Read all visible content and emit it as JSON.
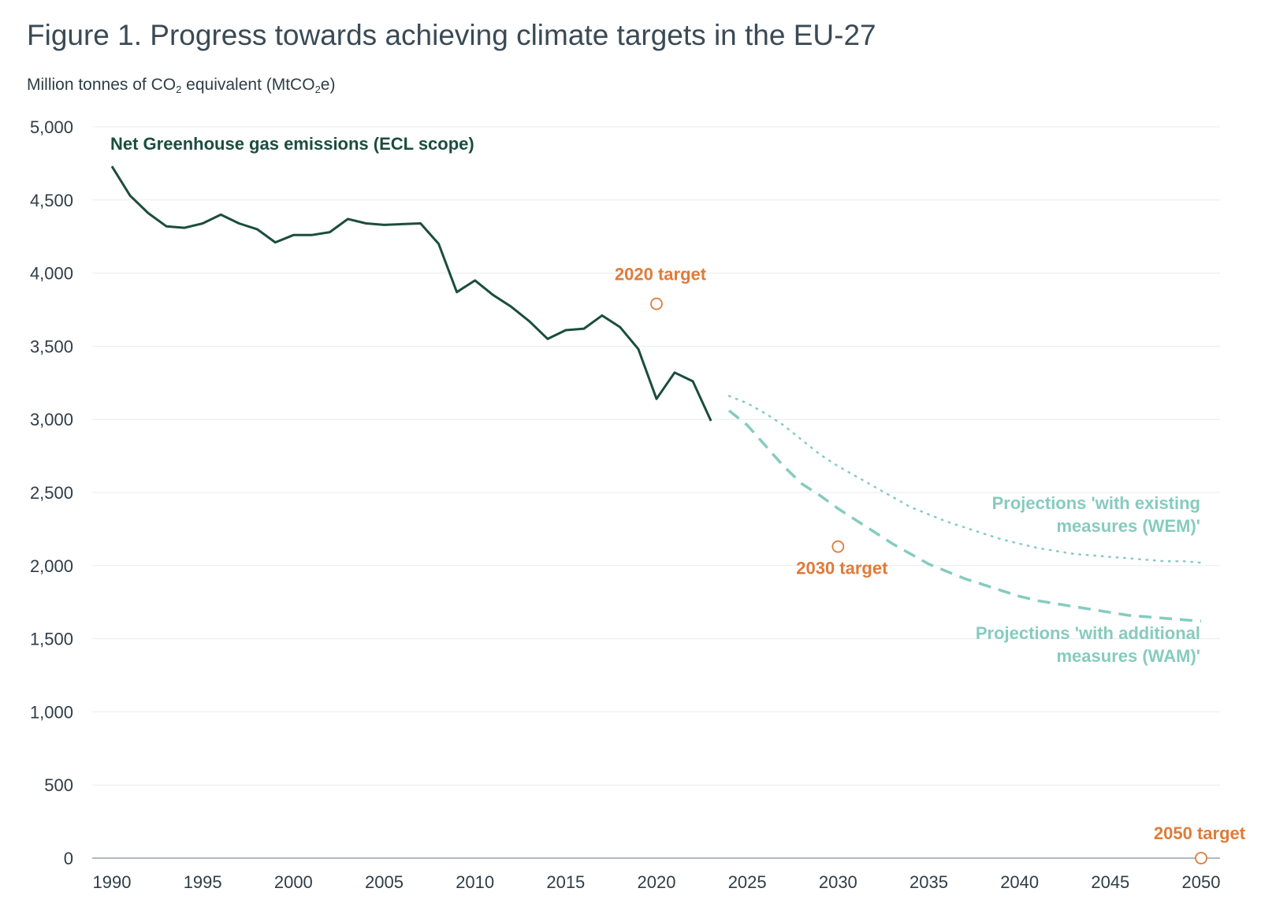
{
  "figure": {
    "title": "Figure 1. Progress towards achieving climate targets in the EU-27",
    "unit_prefix": "Million tonnes of CO",
    "unit_sub1": "2",
    "unit_mid": " equivalent (MtCO",
    "unit_sub2": "2",
    "unit_suffix": "e)"
  },
  "colors": {
    "historic": "#1b4d3e",
    "projection": "#86cbbf",
    "target": "#e07b39",
    "grid": "#e9ecee",
    "axis": "#9aa3a9",
    "text": "#2f3d47"
  },
  "chart_data": {
    "type": "line",
    "ylim": [
      0,
      5000
    ],
    "xlim": [
      1990,
      2050
    ],
    "grid": "horizontal",
    "y_ticks": [
      "0",
      "500",
      "1,000",
      "1,500",
      "2,000",
      "2,500",
      "3,000",
      "3,500",
      "4,000",
      "4,500",
      "5,000"
    ],
    "x_ticks": [
      "1990",
      "1995",
      "2000",
      "2005",
      "2010",
      "2015",
      "2020",
      "2025",
      "2030",
      "2035",
      "2040",
      "2045",
      "2050"
    ],
    "series": [
      {
        "name": "Net Greenhouse gas emissions (ECL scope)",
        "style": "solid",
        "x": [
          1990,
          1991,
          1992,
          1993,
          1994,
          1995,
          1996,
          1997,
          1998,
          1999,
          2000,
          2001,
          2002,
          2003,
          2004,
          2005,
          2006,
          2007,
          2008,
          2009,
          2010,
          2011,
          2012,
          2013,
          2014,
          2015,
          2016,
          2017,
          2018,
          2019,
          2020,
          2021,
          2022,
          2023
        ],
        "y": [
          4730,
          4530,
          4410,
          4320,
          4310,
          4340,
          4400,
          4340,
          4300,
          4210,
          4260,
          4260,
          4280,
          4370,
          4340,
          4330,
          4335,
          4340,
          4200,
          3870,
          3950,
          3850,
          3770,
          3670,
          3550,
          3610,
          3620,
          3710,
          3630,
          3480,
          3140,
          3320,
          3260,
          2990
        ]
      },
      {
        "name": "Projections 'with existing measures (WEM)'",
        "style": "dotted",
        "x": [
          2024,
          2025,
          2026,
          2027,
          2028,
          2029,
          2030,
          2031,
          2032,
          2033,
          2034,
          2035,
          2036,
          2037,
          2038,
          2039,
          2040,
          2041,
          2042,
          2043,
          2044,
          2045,
          2046,
          2047,
          2048,
          2049,
          2050
        ],
        "y": [
          3160,
          3110,
          3040,
          2960,
          2860,
          2760,
          2680,
          2610,
          2540,
          2470,
          2400,
          2350,
          2300,
          2260,
          2220,
          2180,
          2150,
          2120,
          2100,
          2080,
          2070,
          2060,
          2050,
          2040,
          2030,
          2030,
          2020
        ]
      },
      {
        "name": "Projections 'with additional measures (WAM)'",
        "style": "dashed",
        "x": [
          2024,
          2025,
          2026,
          2027,
          2028,
          2029,
          2030,
          2031,
          2032,
          2033,
          2034,
          2035,
          2036,
          2037,
          2038,
          2039,
          2040,
          2041,
          2042,
          2043,
          2044,
          2045,
          2046,
          2047,
          2048,
          2049,
          2050
        ],
        "y": [
          3060,
          2960,
          2820,
          2680,
          2560,
          2480,
          2390,
          2310,
          2230,
          2150,
          2080,
          2010,
          1960,
          1910,
          1870,
          1830,
          1790,
          1760,
          1740,
          1720,
          1700,
          1680,
          1660,
          1650,
          1640,
          1630,
          1620
        ]
      }
    ],
    "targets": [
      {
        "label": "2020 target",
        "x": 2020,
        "y": 3790
      },
      {
        "label": "2030 target",
        "x": 2030,
        "y": 2130
      },
      {
        "label": "2050 target",
        "x": 2050,
        "y": 0
      }
    ],
    "series_labels": {
      "historic": "Net Greenhouse gas emissions (ECL scope)",
      "wem_line1": "Projections 'with existing",
      "wem_line2": "measures (WEM)'",
      "wam_line1": "Projections 'with additional",
      "wam_line2": "measures (WAM)'"
    }
  }
}
